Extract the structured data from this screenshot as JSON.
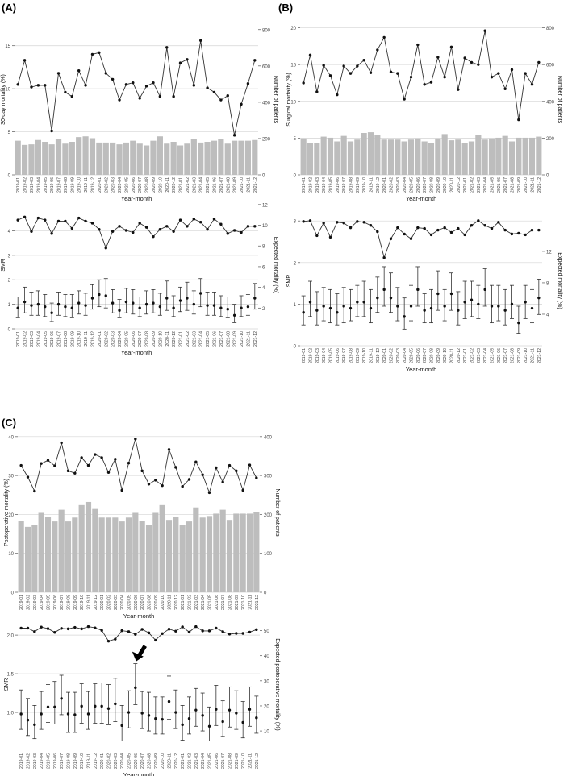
{
  "figure": {
    "panel_labels": [
      "(A)",
      "(B)",
      "(C)"
    ],
    "months": [
      "2019-01",
      "2019-02",
      "2019-03",
      "2019-04",
      "2019-05",
      "2019-06",
      "2019-07",
      "2019-08",
      "2019-09",
      "2019-10",
      "2019-11",
      "2019-12",
      "2020-01",
      "2020-02",
      "2020-03",
      "2020-04",
      "2020-05",
      "2020-06",
      "2020-07",
      "2020-08",
      "2020-09",
      "2020-10",
      "2020-11",
      "2020-12",
      "2021-01",
      "2021-02",
      "2021-03",
      "2021-04",
      "2021-05",
      "2021-06",
      "2021-07",
      "2021-08",
      "2021-09",
      "2021-10",
      "2021-11",
      "2021-12"
    ]
  },
  "chart_data": [
    {
      "id": "A-top",
      "type": "bar+line",
      "xlabel": "Year-month",
      "ylabel_left": "30-day mortality (%)",
      "ylim_left": [
        0,
        17.5
      ],
      "yticks_left": [
        0,
        5,
        10,
        15
      ],
      "ylabel_right": "Number of patients",
      "ylim_right": [
        0,
        830
      ],
      "yticks_right": [
        0,
        200,
        400,
        600,
        800
      ],
      "grid": true,
      "bars": [
        188,
        165,
        168,
        192,
        182,
        168,
        198,
        172,
        182,
        208,
        212,
        202,
        178,
        178,
        178,
        168,
        178,
        188,
        172,
        162,
        188,
        212,
        172,
        182,
        162,
        172,
        198,
        178,
        182,
        188,
        198,
        172,
        188,
        188,
        188,
        192
      ],
      "line": [
        10.5,
        13.3,
        10.2,
        10.4,
        10.4,
        5.1,
        11.8,
        9.6,
        9.1,
        12.1,
        10.4,
        14.0,
        14.2,
        11.8,
        11.1,
        8.7,
        10.5,
        10.7,
        8.9,
        10.3,
        10.7,
        9.1,
        14.8,
        9.1,
        13.0,
        13.4,
        10.4,
        15.6,
        10.1,
        9.6,
        8.7,
        9.2,
        4.6,
        8.2,
        10.6,
        13.3
      ]
    },
    {
      "id": "A-bottom",
      "type": "errorbar+line",
      "xlabel": "Year-month",
      "ylabel_left": "SMR",
      "ylim_left": [
        0,
        5.2
      ],
      "yticks_left": [
        0,
        1,
        2,
        3,
        4
      ],
      "ylabel_right": "Expected mortality (%)",
      "ylim_right": [
        0,
        12.3
      ],
      "yticks_right": [
        2,
        4,
        6,
        8,
        10,
        12
      ],
      "grid": true,
      "smr": [
        0.85,
        1.1,
        0.95,
        1.0,
        0.9,
        0.65,
        1.0,
        0.9,
        0.85,
        1.05,
        0.95,
        1.25,
        1.4,
        1.35,
        1.05,
        0.75,
        1.1,
        1.05,
        0.85,
        1.0,
        1.05,
        0.9,
        1.25,
        0.85,
        1.15,
        1.25,
        1.0,
        1.45,
        0.95,
        0.95,
        0.85,
        0.8,
        0.55,
        0.85,
        0.9,
        1.25
      ],
      "ci_low": [
        0.45,
        0.65,
        0.55,
        0.55,
        0.5,
        0.3,
        0.55,
        0.5,
        0.45,
        0.6,
        0.55,
        0.8,
        0.9,
        0.85,
        0.65,
        0.45,
        0.65,
        0.6,
        0.5,
        0.6,
        0.65,
        0.55,
        0.75,
        0.5,
        0.7,
        0.75,
        0.6,
        0.9,
        0.55,
        0.55,
        0.5,
        0.45,
        0.25,
        0.5,
        0.55,
        0.8
      ],
      "ci_high": [
        1.3,
        1.7,
        1.5,
        1.55,
        1.4,
        1.05,
        1.5,
        1.4,
        1.4,
        1.55,
        1.45,
        1.8,
        2.0,
        2.05,
        1.6,
        1.2,
        1.65,
        1.6,
        1.3,
        1.55,
        1.6,
        1.45,
        1.95,
        1.35,
        1.7,
        1.9,
        1.55,
        2.05,
        1.5,
        1.5,
        1.35,
        1.3,
        1.0,
        1.35,
        1.4,
        1.85
      ],
      "expected": [
        10.5,
        10.8,
        9.4,
        10.7,
        10.5,
        9.2,
        10.4,
        10.4,
        9.7,
        10.7,
        10.4,
        10.2,
        9.6,
        7.8,
        9.4,
        9.9,
        9.5,
        9.3,
        10.2,
        9.8,
        8.9,
        9.6,
        9.9,
        9.4,
        10.5,
        9.9,
        10.6,
        10.3,
        9.6,
        10.6,
        10.1,
        9.2,
        9.5,
        9.3,
        9.9,
        9.9
      ]
    },
    {
      "id": "B-top",
      "type": "bar+line",
      "xlabel": "Year-month",
      "ylabel_left": "Surgical mortality (%)",
      "ylim_left": [
        0,
        20.5
      ],
      "yticks_left": [
        0,
        5,
        10,
        15,
        20
      ],
      "ylabel_right": "Number of patients",
      "ylim_right": [
        0,
        820
      ],
      "yticks_right": [
        0,
        200,
        400,
        600,
        800
      ],
      "grid": true,
      "bars": [
        198,
        172,
        172,
        208,
        202,
        182,
        212,
        182,
        192,
        228,
        232,
        218,
        192,
        192,
        192,
        182,
        192,
        198,
        182,
        172,
        198,
        222,
        188,
        192,
        172,
        182,
        218,
        192,
        198,
        202,
        212,
        182,
        202,
        202,
        202,
        208
      ],
      "line": [
        12.5,
        16.3,
        11.3,
        14.9,
        13.5,
        10.9,
        14.8,
        13.8,
        14.8,
        15.6,
        13.9,
        17.0,
        18.7,
        14.0,
        13.8,
        10.3,
        13.3,
        17.7,
        12.3,
        12.6,
        16.0,
        13.3,
        17.4,
        11.6,
        15.9,
        15.3,
        15.0,
        19.6,
        13.3,
        13.8,
        11.7,
        14.3,
        7.5,
        13.8,
        12.3,
        15.3
      ]
    },
    {
      "id": "B-bottom",
      "type": "errorbar+line",
      "xlabel": "Year-month",
      "ylabel_left": "SMR",
      "ylim_left": [
        0,
        3.12
      ],
      "yticks_left": [
        0,
        1,
        2,
        3
      ],
      "ylabel_right": "Expected mortality (%)",
      "ylim_right": [
        0,
        16.5
      ],
      "yticks_right": [
        4,
        8,
        12
      ],
      "grid": true,
      "smr": [
        0.8,
        1.05,
        0.85,
        0.95,
        0.9,
        0.8,
        0.95,
        0.9,
        1.05,
        1.05,
        0.9,
        1.15,
        1.35,
        1.15,
        0.95,
        0.7,
        0.95,
        1.35,
        0.85,
        0.9,
        1.25,
        0.95,
        1.25,
        0.85,
        1.05,
        1.1,
        1.0,
        1.35,
        0.95,
        0.95,
        0.85,
        1.0,
        0.55,
        1.05,
        0.9,
        1.15
      ],
      "ci_low": [
        0.5,
        0.7,
        0.5,
        0.6,
        0.55,
        0.5,
        0.55,
        0.6,
        0.7,
        0.7,
        0.55,
        0.8,
        0.95,
        0.8,
        0.6,
        0.4,
        0.6,
        0.95,
        0.55,
        0.55,
        0.85,
        0.6,
        0.85,
        0.5,
        0.65,
        0.7,
        0.65,
        0.95,
        0.55,
        0.6,
        0.5,
        0.65,
        0.3,
        0.65,
        0.55,
        0.75
      ],
      "ci_high": [
        1.2,
        1.55,
        1.3,
        1.4,
        1.35,
        1.25,
        1.4,
        1.35,
        1.45,
        1.55,
        1.35,
        1.65,
        1.9,
        1.75,
        1.4,
        1.15,
        1.45,
        1.9,
        1.25,
        1.35,
        1.8,
        1.35,
        1.75,
        1.3,
        1.55,
        1.55,
        1.45,
        1.85,
        1.45,
        1.45,
        1.35,
        1.45,
        0.95,
        1.45,
        1.35,
        1.6
      ],
      "expected": [
        15.8,
        15.9,
        14.0,
        15.6,
        13.8,
        15.7,
        15.6,
        15.0,
        15.8,
        15.7,
        15.3,
        14.5,
        11.2,
        13.6,
        15.0,
        14.2,
        13.6,
        15.0,
        14.9,
        14.1,
        14.7,
        15.0,
        14.4,
        14.9,
        14.1,
        15.3,
        15.9,
        15.3,
        14.9,
        15.7,
        14.7,
        14.2,
        14.3,
        14.1,
        14.7,
        14.7
      ]
    },
    {
      "id": "C-top",
      "type": "bar+line",
      "xlabel": "Year-month",
      "ylabel_left": "Postoperative mortality (%)",
      "ylim_left": [
        0,
        41
      ],
      "yticks_left": [
        0,
        10,
        20,
        30,
        40
      ],
      "ylabel_right": "Number of patients",
      "ylim_right": [
        0,
        410
      ],
      "yticks_right": [
        0,
        100,
        200,
        300,
        400
      ],
      "grid": true,
      "bars": [
        184,
        168,
        172,
        204,
        194,
        182,
        212,
        182,
        192,
        224,
        232,
        214,
        192,
        192,
        192,
        182,
        192,
        204,
        184,
        172,
        204,
        224,
        186,
        194,
        172,
        182,
        218,
        192,
        196,
        202,
        212,
        186,
        202,
        202,
        202,
        206
      ],
      "line": [
        32.6,
        29.6,
        26.0,
        33.1,
        33.9,
        32.5,
        38.4,
        31.2,
        30.6,
        34.6,
        32.6,
        35.4,
        34.6,
        30.8,
        34.2,
        26.2,
        33.2,
        39.4,
        31.2,
        27.8,
        28.8,
        27.4,
        36.7,
        32.1,
        27.2,
        29.0,
        33.5,
        30.2,
        25.6,
        32.0,
        28.3,
        32.6,
        31.2,
        26.2,
        32.7,
        29.4
      ]
    },
    {
      "id": "C-bottom",
      "type": "errorbar+line",
      "xlabel": "Year-month",
      "ylabel_left": "SMR",
      "ylim_left": [
        0.5,
        2.22
      ],
      "yticks_left": [
        1.0,
        1.5,
        2.0
      ],
      "ylabel_right": "Expected postoperative mortality (%)",
      "ylim_right": [
        2,
        55
      ],
      "yticks_right": [
        10,
        20,
        30,
        40,
        50
      ],
      "grid": true,
      "smr": [
        0.98,
        0.9,
        0.84,
        0.98,
        1.07,
        1.07,
        1.18,
        0.98,
        0.97,
        1.08,
        0.98,
        1.08,
        1.08,
        1.05,
        1.11,
        0.83,
        1.0,
        1.32,
        0.99,
        0.96,
        0.92,
        0.91,
        1.14,
        1.0,
        0.84,
        0.92,
        1.03,
        0.96,
        0.82,
        1.04,
        0.88,
        1.03,
        0.99,
        0.87,
        1.04,
        0.93
      ],
      "ci_low": [
        0.78,
        0.7,
        0.66,
        0.78,
        0.87,
        0.85,
        0.97,
        0.74,
        0.74,
        0.86,
        0.78,
        0.86,
        0.86,
        0.84,
        0.88,
        0.63,
        0.8,
        1.1,
        0.79,
        0.76,
        0.72,
        0.72,
        0.91,
        0.79,
        0.64,
        0.72,
        0.82,
        0.76,
        0.63,
        0.83,
        0.69,
        0.81,
        0.78,
        0.67,
        0.82,
        0.73
      ],
      "ci_high": [
        1.29,
        1.18,
        1.09,
        1.27,
        1.36,
        1.4,
        1.48,
        1.26,
        1.26,
        1.37,
        1.27,
        1.37,
        1.38,
        1.36,
        1.44,
        1.09,
        1.28,
        1.63,
        1.27,
        1.26,
        1.2,
        1.2,
        1.47,
        1.29,
        1.09,
        1.2,
        1.31,
        1.25,
        1.07,
        1.35,
        1.15,
        1.33,
        1.28,
        1.14,
        1.33,
        1.21
      ],
      "expected": [
        51.0,
        51.0,
        49.6,
        51.4,
        50.8,
        49.3,
        50.9,
        50.7,
        51.3,
        50.7,
        51.6,
        51.1,
        50.1,
        45.8,
        46.6,
        50.0,
        49.6,
        48.5,
        50.5,
        49.1,
        46.2,
        48.8,
        50.6,
        49.8,
        51.5,
        49.4,
        51.6,
        49.9,
        49.9,
        51.0,
        49.6,
        48.6,
        48.9,
        48.9,
        49.4,
        50.4
      ]
    }
  ],
  "annotation": {
    "arrow_panel": "C-bottom",
    "arrow_month": "2020-06"
  }
}
